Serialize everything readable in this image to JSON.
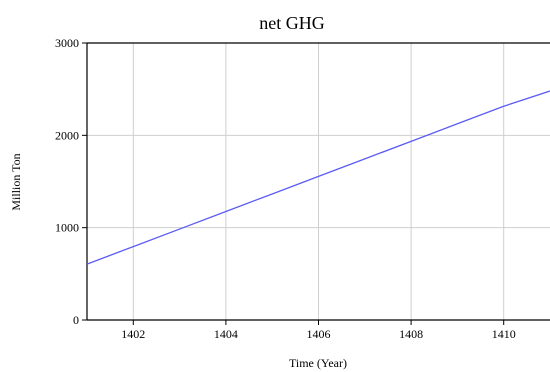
{
  "chart_data": {
    "type": "line",
    "title": "net GHG",
    "xlabel": "Time (Year)",
    "ylabel": "Million Ton",
    "xlim": [
      1401,
      1411
    ],
    "ylim": [
      0,
      3000
    ],
    "x_ticks": [
      "1402",
      "1404",
      "1406",
      "1408",
      "1410"
    ],
    "y_ticks": [
      "0",
      "1000",
      "2000",
      "3000"
    ],
    "grid": true,
    "series": [
      {
        "color": "#5b5bf5",
        "x": [
          1401,
          1402,
          1403,
          1404,
          1405,
          1406,
          1407,
          1408,
          1409,
          1410,
          1411
        ],
        "y": [
          605,
          795,
          985,
          1175,
          1365,
          1555,
          1745,
          1935,
          2125,
          2315,
          2480
        ]
      }
    ]
  }
}
